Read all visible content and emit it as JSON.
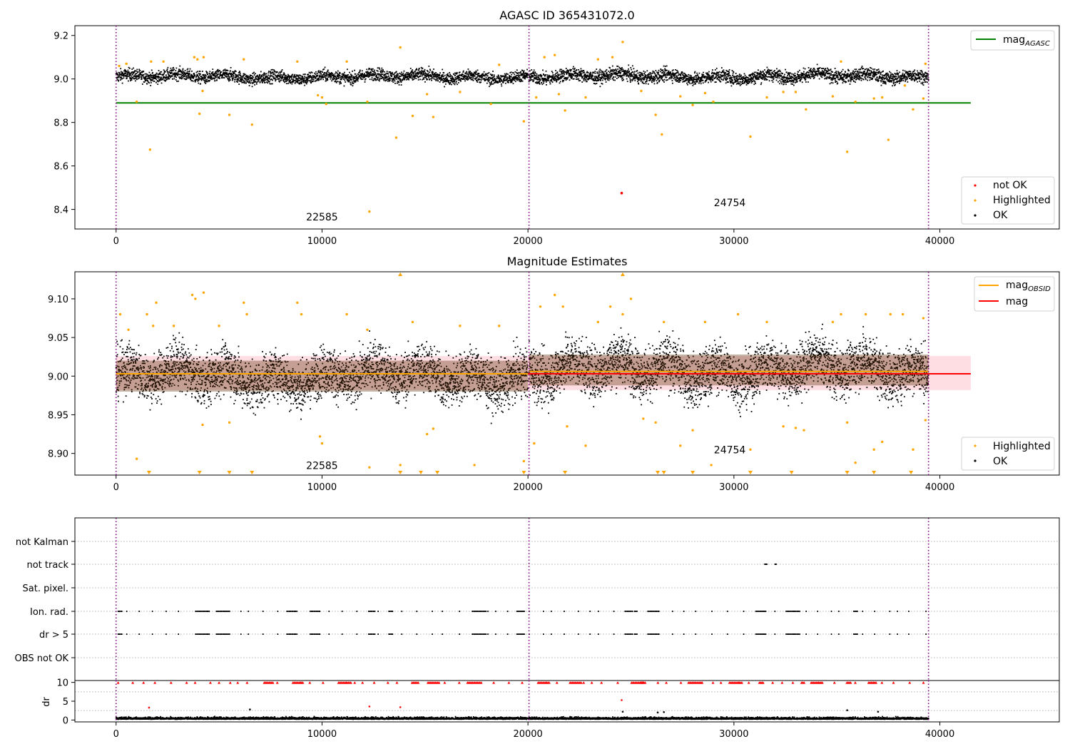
{
  "chart_data": [
    {
      "id": "agasc",
      "type": "scatter",
      "title": "AGASC ID 365431072.0",
      "xlim": [
        -2000,
        45800
      ],
      "ylim": [
        8.31,
        9.245
      ],
      "xticks": [
        0,
        10000,
        20000,
        30000,
        40000
      ],
      "xtick_labels": [
        "0",
        "10000",
        "20000",
        "30000",
        "40000"
      ],
      "yticks": [
        8.4,
        8.6,
        8.8,
        9.0,
        9.2
      ],
      "ytick_labels": [
        "8.4",
        "8.6",
        "8.8",
        "9.0",
        "9.2"
      ],
      "obs_boundaries": [
        0,
        20050,
        39450
      ],
      "obsid_labels": [
        {
          "text": "22585",
          "x": 10000,
          "y": 8.35
        },
        {
          "text": "24754",
          "x": 29800,
          "y": 8.415
        }
      ],
      "lines": [
        {
          "name": "mag_AGASC",
          "legend": "mag",
          "subscript": "AGASC",
          "y": 8.89,
          "x": [
            0,
            41500
          ],
          "color": "#008000"
        }
      ],
      "legend_top": [
        "mag_AGASC"
      ],
      "legend_bottom": [
        {
          "label": "not OK",
          "color": "#ff0000"
        },
        {
          "label": "Highlighted",
          "color": "#ffa500"
        },
        {
          "label": "OK",
          "color": "#000000"
        }
      ],
      "ok_band": {
        "segments": [
          {
            "x": [
              0,
              20000
            ],
            "center": 9.01,
            "half": 0.035
          },
          {
            "x": [
              20050,
              39450
            ],
            "center": 9.012,
            "half": 0.037
          }
        ]
      },
      "highlighted": [
        [
          150,
          9.06
        ],
        [
          500,
          9.07
        ],
        [
          1000,
          8.895
        ],
        [
          1650,
          8.675
        ],
        [
          1700,
          9.08
        ],
        [
          2300,
          9.08
        ],
        [
          3800,
          9.1
        ],
        [
          3950,
          9.09
        ],
        [
          4050,
          8.84
        ],
        [
          4200,
          8.945
        ],
        [
          4250,
          9.1
        ],
        [
          5500,
          8.835
        ],
        [
          6200,
          9.09
        ],
        [
          6600,
          8.79
        ],
        [
          8800,
          9.08
        ],
        [
          9800,
          8.925
        ],
        [
          10000,
          8.915
        ],
        [
          10200,
          8.885
        ],
        [
          11200,
          9.08
        ],
        [
          12200,
          8.895
        ],
        [
          12300,
          8.39
        ],
        [
          13600,
          8.73
        ],
        [
          13800,
          9.145
        ],
        [
          14400,
          8.83
        ],
        [
          15100,
          8.93
        ],
        [
          15400,
          8.825
        ],
        [
          16700,
          8.94
        ],
        [
          18200,
          8.885
        ],
        [
          18600,
          9.065
        ],
        [
          19800,
          8.805
        ],
        [
          20400,
          8.915
        ],
        [
          20800,
          9.1
        ],
        [
          21300,
          9.11
        ],
        [
          21500,
          8.93
        ],
        [
          21800,
          8.855
        ],
        [
          22800,
          8.915
        ],
        [
          23400,
          9.09
        ],
        [
          24600,
          9.17
        ],
        [
          24100,
          9.1
        ],
        [
          25500,
          8.945
        ],
        [
          26200,
          8.835
        ],
        [
          26500,
          8.745
        ],
        [
          27400,
          8.92
        ],
        [
          28000,
          8.88
        ],
        [
          28600,
          8.935
        ],
        [
          29000,
          8.895
        ],
        [
          30800,
          8.735
        ],
        [
          31600,
          8.915
        ],
        [
          32400,
          8.94
        ],
        [
          33000,
          8.94
        ],
        [
          33500,
          8.86
        ],
        [
          34800,
          8.92
        ],
        [
          35200,
          9.08
        ],
        [
          35500,
          8.665
        ],
        [
          35900,
          8.895
        ],
        [
          36800,
          8.91
        ],
        [
          37200,
          8.915
        ],
        [
          37500,
          8.72
        ],
        [
          38300,
          8.97
        ],
        [
          38700,
          8.86
        ],
        [
          39200,
          8.91
        ],
        [
          39300,
          9.07
        ]
      ],
      "not_ok": [
        [
          24550,
          8.475
        ]
      ]
    },
    {
      "id": "estimates",
      "type": "scatter",
      "title": "Magnitude Estimates",
      "xlim": [
        -2000,
        45800
      ],
      "ylim": [
        8.872,
        9.135
      ],
      "xticks": [
        0,
        10000,
        20000,
        30000,
        40000
      ],
      "xtick_labels": [
        "0",
        "10000",
        "20000",
        "30000",
        "40000"
      ],
      "yticks": [
        8.9,
        8.95,
        9.0,
        9.05,
        9.1
      ],
      "ytick_labels": [
        "8.90",
        "8.95",
        "9.00",
        "9.05",
        "9.10"
      ],
      "obs_boundaries": [
        0,
        20050,
        39450
      ],
      "obsid_labels": [
        {
          "text": "22585",
          "x": 10000,
          "y": 8.88
        },
        {
          "text": "24754",
          "x": 29800,
          "y": 8.9
        }
      ],
      "bands": [
        {
          "x": [
            0,
            41500
          ],
          "y": [
            8.982,
            9.026
          ],
          "color": "#ffb6c1",
          "opacity": 0.45
        }
      ],
      "lines": [
        {
          "name": "mag_OBSID_1",
          "legend": "mag",
          "subscript": "OBSID",
          "segments": [
            [
              0,
              20000,
              9.003
            ],
            [
              20050,
              39450,
              9.006
            ]
          ],
          "color": "#ffa500"
        },
        {
          "name": "mag",
          "legend": "mag",
          "subscript": "",
          "y": 9.003,
          "x": [
            0,
            41500
          ],
          "color": "#ff0000"
        }
      ],
      "legend_bottom": [
        {
          "label": "Highlighted",
          "color": "#ffa500"
        },
        {
          "label": "OK",
          "color": "#000000"
        }
      ],
      "ok_band": {
        "segments": [
          {
            "x": [
              0,
              20000
            ],
            "center": 9.0,
            "half": 0.04
          },
          {
            "x": [
              20050,
              39450
            ],
            "center": 9.008,
            "half": 0.042
          }
        ]
      },
      "highlighted": [
        [
          200,
          9.08
        ],
        [
          600,
          9.06
        ],
        [
          1000,
          8.893
        ],
        [
          1500,
          9.08
        ],
        [
          1800,
          9.065
        ],
        [
          1950,
          9.095
        ],
        [
          2800,
          9.065
        ],
        [
          3700,
          9.105
        ],
        [
          3850,
          9.1
        ],
        [
          4250,
          9.108
        ],
        [
          4200,
          8.937
        ],
        [
          5000,
          9.065
        ],
        [
          5500,
          8.94
        ],
        [
          6200,
          9.095
        ],
        [
          6350,
          9.08
        ],
        [
          8800,
          9.095
        ],
        [
          9000,
          9.08
        ],
        [
          9900,
          8.922
        ],
        [
          10000,
          8.913
        ],
        [
          11200,
          9.08
        ],
        [
          12200,
          9.06
        ],
        [
          12300,
          8.882
        ],
        [
          13800,
          8.885
        ],
        [
          14400,
          9.07
        ],
        [
          15100,
          8.925
        ],
        [
          15400,
          8.932
        ],
        [
          16700,
          9.065
        ],
        [
          17400,
          8.885
        ],
        [
          18600,
          9.065
        ],
        [
          19800,
          8.89
        ],
        [
          20300,
          8.913
        ],
        [
          20600,
          9.09
        ],
        [
          21300,
          9.105
        ],
        [
          21700,
          9.09
        ],
        [
          21900,
          8.935
        ],
        [
          22800,
          8.91
        ],
        [
          23400,
          9.07
        ],
        [
          24000,
          9.09
        ],
        [
          24600,
          9.08
        ],
        [
          25000,
          9.1
        ],
        [
          25600,
          8.945
        ],
        [
          26200,
          8.94
        ],
        [
          26600,
          9.07
        ],
        [
          27400,
          8.91
        ],
        [
          28000,
          8.93
        ],
        [
          28600,
          9.07
        ],
        [
          28900,
          8.885
        ],
        [
          30200,
          9.08
        ],
        [
          30800,
          8.905
        ],
        [
          31600,
          9.07
        ],
        [
          32400,
          8.935
        ],
        [
          33000,
          8.933
        ],
        [
          33400,
          8.93
        ],
        [
          34800,
          9.07
        ],
        [
          35200,
          9.08
        ],
        [
          35500,
          8.94
        ],
        [
          35900,
          8.888
        ],
        [
          36400,
          9.08
        ],
        [
          36800,
          8.905
        ],
        [
          37200,
          8.915
        ],
        [
          37600,
          9.08
        ],
        [
          38200,
          9.08
        ],
        [
          38700,
          8.905
        ],
        [
          39200,
          9.075
        ],
        [
          39300,
          8.943
        ]
      ],
      "markers_low": [
        1600,
        4050,
        5500,
        6600,
        13800,
        14800,
        15600,
        19800,
        21800,
        26300,
        26600,
        28000,
        30800,
        32800,
        35500,
        36800,
        38600
      ],
      "markers_high": [
        13800,
        24600
      ]
    },
    {
      "id": "flags",
      "type": "scatter",
      "xlim": [
        -2000,
        45800
      ],
      "categories": [
        "not Kalman",
        "not track",
        "Sat. pixel.",
        "Ion. rad.",
        "dr > 5",
        "OBS not OK"
      ],
      "xticks": [
        0,
        10000,
        20000,
        30000,
        40000
      ],
      "xtick_labels": [
        "0",
        "10000",
        "20000",
        "30000",
        "40000"
      ],
      "obs_boundaries": [
        0,
        20050,
        39450
      ],
      "not_track": [
        [
          31500,
          31600
        ],
        [
          32000,
          32050
        ]
      ],
      "flag_rows": [
        "Ion. rad.",
        "dr > 5"
      ],
      "flag_range": [
        0,
        39450
      ]
    },
    {
      "id": "dr",
      "type": "scatter",
      "ylabel": "dr",
      "xlim": [
        -2000,
        45800
      ],
      "ylim": [
        -0.5,
        10.5
      ],
      "yticks": [
        0,
        5,
        10
      ],
      "ytick_labels": [
        "0",
        "5",
        "10"
      ],
      "xticks": [
        0,
        10000,
        20000,
        30000,
        40000
      ],
      "xtick_labels": [
        "0",
        "10000",
        "20000",
        "30000",
        "40000"
      ],
      "obs_boundaries": [
        0,
        20050,
        39450
      ],
      "outliers": [
        [
          1600,
          3.3,
          "#ff0000"
        ],
        [
          6500,
          2.8,
          "#000000"
        ],
        [
          12300,
          3.6,
          "#ff0000"
        ],
        [
          13800,
          3.4,
          "#ff0000"
        ],
        [
          24550,
          5.3,
          "#ff0000"
        ],
        [
          24600,
          2.2,
          "#000000"
        ],
        [
          26300,
          2.0,
          "#000000"
        ],
        [
          26600,
          2.1,
          "#000000"
        ],
        [
          35500,
          2.6,
          "#000000"
        ],
        [
          37000,
          2.2,
          "#000000"
        ]
      ]
    }
  ]
}
